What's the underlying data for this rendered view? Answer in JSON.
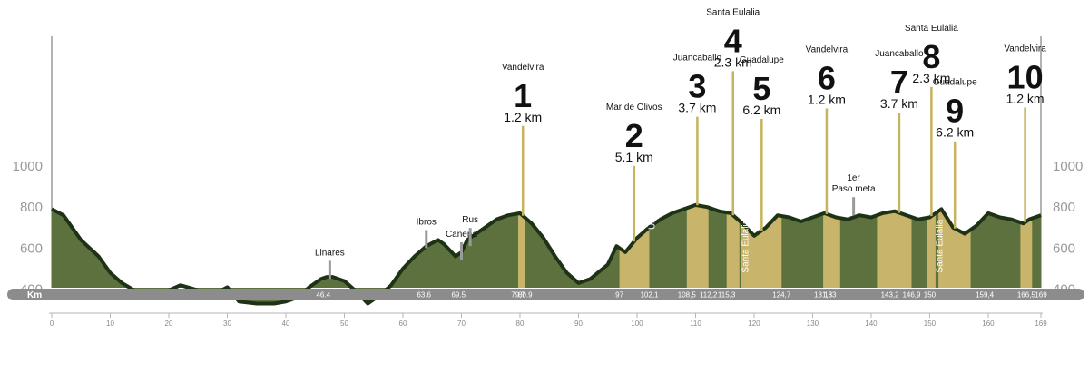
{
  "chart_data": {
    "type": "area",
    "xlabel": "Km",
    "xlim": [
      0,
      169
    ],
    "ylim": [
      230,
      1230
    ],
    "y_ticks": [
      400,
      600,
      800,
      1000
    ],
    "y_tick_labels": [
      "400",
      "600",
      "800",
      "1000"
    ],
    "x_ticks": [
      0,
      10,
      20,
      30,
      40,
      50,
      60,
      70,
      80,
      90,
      100,
      110,
      120,
      130,
      140,
      150,
      160,
      169
    ],
    "x_tick_labels": [
      "0",
      "10",
      "20",
      "30",
      "40",
      "50",
      "60",
      "70",
      "80",
      "90",
      "100",
      "110",
      "120",
      "130",
      "140",
      "150",
      "160",
      "169"
    ],
    "km_marks": [
      {
        "km": 46.4,
        "label": "46.4"
      },
      {
        "km": 63.6,
        "label": "63.6"
      },
      {
        "km": 69.5,
        "label": "69.5"
      },
      {
        "km": 79.7,
        "label": "79,7"
      },
      {
        "km": 80.9,
        "label": "80.9"
      },
      {
        "km": 97,
        "label": "97"
      },
      {
        "km": 102.1,
        "label": "102,1"
      },
      {
        "km": 108.5,
        "label": "108,5"
      },
      {
        "km": 112.2,
        "label": "112,2"
      },
      {
        "km": 115.3,
        "label": "115,3"
      },
      {
        "km": 124.7,
        "label": "124,7"
      },
      {
        "km": 131.8,
        "label": "131,8"
      },
      {
        "km": 133,
        "label": "133"
      },
      {
        "km": 143.2,
        "label": "143,2"
      },
      {
        "km": 146.9,
        "label": "146,9"
      },
      {
        "km": 150,
        "label": "150"
      },
      {
        "km": 159.4,
        "label": "159,4"
      },
      {
        "km": 166.5,
        "label": "166,5"
      },
      {
        "km": 169,
        "label": "169"
      }
    ],
    "profile": {
      "x": [
        0,
        2,
        5,
        8,
        10,
        12,
        15,
        18,
        20,
        22,
        25,
        28,
        30,
        32,
        35,
        38,
        40,
        42,
        44,
        46,
        47,
        48,
        50,
        52,
        54,
        56,
        58,
        60,
        62,
        64,
        66,
        67,
        69,
        70,
        71,
        72,
        74,
        76,
        78,
        80,
        82,
        84,
        86,
        88,
        90,
        92,
        95,
        96.5,
        98,
        100,
        102,
        104,
        106,
        108,
        110,
        112,
        114,
        116,
        118,
        120,
        122,
        124,
        126,
        128,
        130,
        132,
        134,
        136,
        138,
        140,
        142,
        144,
        146,
        148,
        150,
        152,
        154,
        156,
        158,
        160,
        162,
        164,
        166,
        167,
        169
      ],
      "y": [
        790,
        760,
        640,
        560,
        480,
        430,
        380,
        390,
        395,
        420,
        395,
        380,
        410,
        340,
        330,
        330,
        340,
        360,
        410,
        450,
        460,
        460,
        440,
        390,
        330,
        370,
        420,
        500,
        560,
        610,
        640,
        620,
        560,
        580,
        640,
        660,
        700,
        740,
        760,
        770,
        720,
        650,
        560,
        480,
        430,
        450,
        520,
        610,
        580,
        650,
        700,
        740,
        770,
        790,
        810,
        800,
        780,
        770,
        720,
        660,
        700,
        760,
        750,
        730,
        750,
        770,
        750,
        740,
        760,
        750,
        770,
        780,
        760,
        740,
        750,
        790,
        700,
        670,
        710,
        770,
        750,
        740,
        720,
        740,
        760
      ]
    },
    "segments": [
      {
        "from": 79.7,
        "to": 80.9,
        "number": "1",
        "distance": "1.2 km",
        "location": "Vandelvira",
        "label_km": 80.5,
        "apex": 1195
      },
      {
        "from": 97,
        "to": 102.1,
        "number": "2",
        "distance": "5.1 km",
        "location": "Mar de Olivos",
        "label_km": 99.5,
        "apex": 1000
      },
      {
        "from": 108.5,
        "to": 112.2,
        "number": "3",
        "distance": "3.7 km",
        "location": "Juancaballo",
        "label_km": 110.3,
        "apex": 1240
      },
      {
        "from": 115.3,
        "to": 117.5,
        "number": "4",
        "distance": "2.3 km",
        "location": "Santa Eulalia",
        "label_km": 116.4,
        "apex": 1462
      },
      {
        "from": 117.8,
        "to": 124.7,
        "number": "5",
        "distance": "6.2 km",
        "location": "Guadalupe",
        "label_km": 121.3,
        "apex": 1230
      },
      {
        "from": 131.8,
        "to": 134.7,
        "number": "6",
        "distance": "1.2 km",
        "location": "Vandelvira",
        "label_km": 132.4,
        "apex": 1280
      },
      {
        "from": 141.0,
        "to": 146.9,
        "number": "7",
        "distance": "3.7 km",
        "location": "Juancaballo",
        "label_km": 144.8,
        "apex": 1260
      },
      {
        "from": 149.5,
        "to": 151.0,
        "number": "8",
        "distance": "2.3 km",
        "location": "Santa Eulalia",
        "label_km": 150.3,
        "apex": 1385
      },
      {
        "from": 151.5,
        "to": 157.0,
        "number": "9",
        "distance": "6.2 km",
        "location": "Guadalupe",
        "label_km": 154.3,
        "apex": 1120
      },
      {
        "from": 165.5,
        "to": 167.5,
        "number": "10",
        "distance": "1.2 km",
        "location": "Vandelvira",
        "label_km": 166.3,
        "apex": 1285
      }
    ],
    "places": [
      {
        "name": "Linares",
        "km": 47.5,
        "elev": 450
      },
      {
        "name": "Ibros",
        "km": 64.0,
        "elev": 600
      },
      {
        "name": "Canena",
        "km": 70.0,
        "elev": 540
      },
      {
        "name": "Rus",
        "km": 71.5,
        "elev": 610
      },
      {
        "name": "1er\nPaso meta",
        "km": 137.0,
        "elev": 760
      }
    ],
    "vertical_labels": [
      {
        "text": "Úbeda",
        "km": 103.0,
        "elev": 690
      },
      {
        "text": "Santa Eulalia",
        "km": 119.0,
        "elev": 480
      },
      {
        "text": "Santa Eulalia",
        "km": 152.2,
        "elev": 480
      }
    ]
  },
  "colors": {
    "terrain_fill": "#5c713e",
    "terrain_stroke": "#1e3316",
    "segment_fill": "#c8b46a",
    "segment_marker": "#c7b25d",
    "km_bar": "#8c8c8c",
    "gray_marker": "#9a9a9a",
    "axis_text": "#9a9a9a"
  }
}
